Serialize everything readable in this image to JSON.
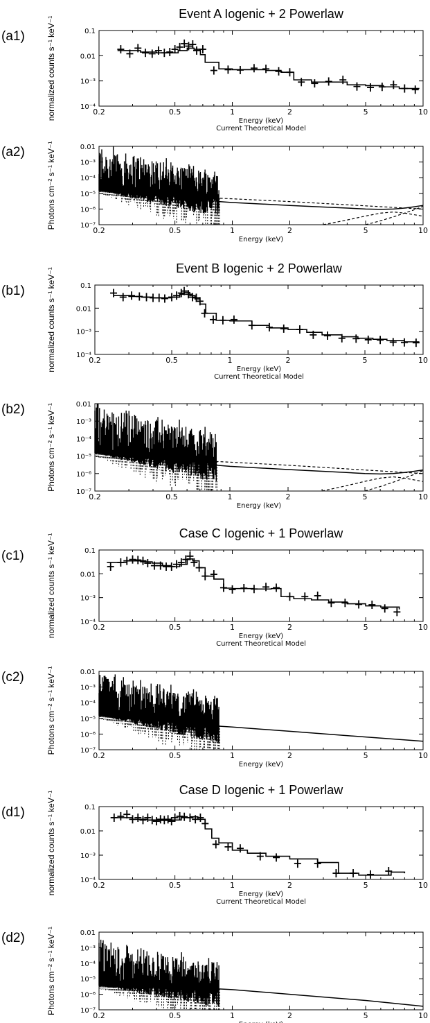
{
  "colors": {
    "ink": "#000000",
    "background": "#ffffff"
  },
  "chart_data": [
    {
      "panel_label": "(a1)",
      "type": "line",
      "title": "Event A Iogenic + 2 Powerlaw",
      "xlabel": "Energy (keV)",
      "ylabel": "normalized counts s⁻¹ keV⁻¹",
      "xscale": "log",
      "yscale": "log",
      "xlim": [
        0.2,
        10
      ],
      "ylim": [
        0.0001,
        0.1
      ],
      "xticks": [
        "0.2",
        "0.5",
        "1",
        "2",
        "5",
        "10"
      ],
      "yticks": [
        "10⁻⁴",
        "10⁻³",
        "0.01",
        "0.1"
      ],
      "caption": "Current Theoretical Model",
      "series": [
        {
          "kind": "data",
          "x": [
            0.26,
            0.29,
            0.32,
            0.35,
            0.38,
            0.41,
            0.44,
            0.47,
            0.5,
            0.53,
            0.56,
            0.59,
            0.62,
            0.65,
            0.7,
            0.8,
            0.95,
            1.1,
            1.3,
            1.5,
            1.75,
            2.0,
            2.3,
            2.7,
            3.2,
            3.8,
            4.5,
            5.3,
            6.1,
            7.0,
            8.0,
            9.1
          ],
          "y": [
            0.018,
            0.012,
            0.02,
            0.013,
            0.012,
            0.016,
            0.013,
            0.014,
            0.018,
            0.022,
            0.03,
            0.024,
            0.028,
            0.016,
            0.018,
            0.0026,
            0.0028,
            0.0027,
            0.0032,
            0.003,
            0.0024,
            0.0022,
            0.0009,
            0.0008,
            0.00095,
            0.0011,
            0.0006,
            0.00055,
            0.00058,
            0.0007,
            0.0005,
            0.00045
          ]
        },
        {
          "kind": "model",
          "x": [
            0.25,
            0.33,
            0.4,
            0.47,
            0.52,
            0.58,
            0.63,
            0.68,
            0.72,
            0.85,
            1.0,
            1.2,
            1.5,
            1.8,
            2.1,
            2.6,
            3.2,
            4.0,
            5.0,
            6.2,
            7.5,
            9.5
          ],
          "y": [
            0.016,
            0.014,
            0.013,
            0.013,
            0.016,
            0.02,
            0.018,
            0.011,
            0.0055,
            0.003,
            0.0028,
            0.0028,
            0.0026,
            0.0022,
            0.0011,
            0.0009,
            0.0009,
            0.0007,
            0.00065,
            0.00058,
            0.0005,
            0.00048
          ]
        }
      ]
    },
    {
      "panel_label": "(a2)",
      "type": "line",
      "title": "",
      "xlabel": "Energy (keV)",
      "ylabel": "Photons cm⁻² s⁻¹ keV⁻¹",
      "xscale": "log",
      "yscale": "log",
      "xlim": [
        0.2,
        10
      ],
      "ylim": [
        1e-07,
        0.01
      ],
      "xticks": [
        "0.2",
        "0.5",
        "1",
        "2",
        "5",
        "10"
      ],
      "yticks": [
        "10⁻⁷",
        "10⁻⁶",
        "10⁻⁵",
        "10⁻⁴",
        "10⁻³",
        "0.01"
      ],
      "lines_cutoff": 0.85,
      "series": [
        {
          "kind": "total",
          "x": [
            0.85,
            1,
            2,
            3,
            4,
            5,
            6,
            7,
            8,
            9,
            10
          ],
          "y": [
            3e-06,
            2.6e-06,
            1.7e-06,
            1.35e-06,
            1.15e-06,
            1e-06,
            9.5e-07,
            1e-06,
            1.15e-06,
            1.4e-06,
            1.7e-06
          ]
        },
        {
          "kind": "component",
          "x": [
            0.2,
            0.3,
            0.5,
            1,
            2,
            5,
            10
          ],
          "y": [
            1.5e-05,
            1e-05,
            6.5e-06,
            4.5e-06,
            3e-06,
            1.6e-06,
            1e-06
          ]
        },
        {
          "kind": "component",
          "x": [
            3,
            4,
            5,
            6,
            7,
            8,
            10
          ],
          "y": [
            1e-07,
            2e-07,
            3.6e-07,
            5.5e-07,
            6.5e-07,
            5.5e-07,
            3.5e-07
          ]
        },
        {
          "kind": "component",
          "x": [
            5,
            6,
            7,
            8,
            9,
            10
          ],
          "y": [
            1e-07,
            1.8e-07,
            3.2e-07,
            5.5e-07,
            9e-07,
            1.5e-06
          ]
        }
      ]
    },
    {
      "panel_label": "(b1)",
      "type": "line",
      "title": "Event B Iogenic + 2 Powerlaw",
      "xlabel": "Energy (keV)",
      "ylabel": "normalized counts s⁻¹ keV⁻¹",
      "xscale": "log",
      "yscale": "log",
      "xlim": [
        0.2,
        10
      ],
      "ylim": [
        0.0001,
        0.1
      ],
      "xticks": [
        "0.2",
        "0.5",
        "1",
        "2",
        "5",
        "10"
      ],
      "yticks": [
        "10⁻⁴",
        "10⁻³",
        "0.01",
        "0.1"
      ],
      "caption": "Current Theoretical Model",
      "series": [
        {
          "kind": "data",
          "x": [
            0.25,
            0.28,
            0.31,
            0.34,
            0.37,
            0.4,
            0.43,
            0.46,
            0.5,
            0.53,
            0.56,
            0.58,
            0.61,
            0.64,
            0.67,
            0.7,
            0.74,
            0.82,
            0.92,
            1.05,
            1.3,
            1.6,
            1.9,
            2.3,
            2.7,
            3.2,
            3.8,
            4.5,
            5.2,
            6.0,
            7.0,
            8.0,
            9.2
          ],
          "y": [
            0.045,
            0.03,
            0.035,
            0.032,
            0.03,
            0.028,
            0.028,
            0.026,
            0.03,
            0.035,
            0.045,
            0.055,
            0.04,
            0.03,
            0.028,
            0.02,
            0.006,
            0.0032,
            0.003,
            0.0032,
            0.0018,
            0.0015,
            0.0013,
            0.0012,
            0.0007,
            0.00065,
            0.0005,
            0.00048,
            0.00043,
            0.00042,
            0.00034,
            0.00033,
            0.00032
          ]
        },
        {
          "kind": "model",
          "x": [
            0.25,
            0.3,
            0.35,
            0.4,
            0.45,
            0.5,
            0.55,
            0.58,
            0.62,
            0.66,
            0.7,
            0.75,
            0.85,
            1.0,
            1.3,
            1.6,
            2.0,
            2.5,
            3.0,
            3.8,
            4.6,
            5.5,
            6.5,
            8.0,
            9.5
          ],
          "y": [
            0.035,
            0.032,
            0.03,
            0.028,
            0.028,
            0.03,
            0.04,
            0.048,
            0.035,
            0.025,
            0.015,
            0.006,
            0.003,
            0.0028,
            0.0018,
            0.0014,
            0.0012,
            0.0009,
            0.0007,
            0.00058,
            0.0005,
            0.00045,
            0.0004,
            0.00035,
            0.00032
          ]
        }
      ]
    },
    {
      "panel_label": "(b2)",
      "type": "line",
      "title": "",
      "xlabel": "Energy (keV)",
      "ylabel": "Photons cm⁻² s⁻¹ keV⁻¹",
      "xscale": "log",
      "yscale": "log",
      "xlim": [
        0.2,
        10
      ],
      "ylim": [
        1e-07,
        0.01
      ],
      "xticks": [
        "0.2",
        "0.5",
        "1",
        "2",
        "5",
        "10"
      ],
      "yticks": [
        "10⁻⁷",
        "10⁻⁶",
        "10⁻⁵",
        "10⁻⁴",
        "10⁻³",
        "0.01"
      ],
      "lines_cutoff": 0.85,
      "series": [
        {
          "kind": "total",
          "x": [
            0.85,
            1,
            2,
            3,
            4,
            5,
            6,
            7,
            8,
            9,
            10
          ],
          "y": [
            3e-06,
            2.6e-06,
            1.7e-06,
            1.35e-06,
            1.15e-06,
            1e-06,
            9.5e-07,
            1e-06,
            1.15e-06,
            1.35e-06,
            1.6e-06
          ]
        },
        {
          "kind": "component",
          "x": [
            0.2,
            0.3,
            0.5,
            1,
            2,
            5,
            10
          ],
          "y": [
            1.5e-05,
            1e-05,
            6.5e-06,
            4.5e-06,
            3e-06,
            1.6e-06,
            1e-06
          ]
        },
        {
          "kind": "component",
          "x": [
            3,
            4,
            5,
            6,
            7,
            8,
            10
          ],
          "y": [
            1e-07,
            2e-07,
            3.6e-07,
            5.5e-07,
            6.5e-07,
            5.5e-07,
            3.5e-07
          ]
        },
        {
          "kind": "component",
          "x": [
            5,
            6,
            7,
            8,
            9,
            10
          ],
          "y": [
            1e-07,
            1.8e-07,
            3.2e-07,
            5.5e-07,
            9e-07,
            1.5e-06
          ]
        }
      ]
    },
    {
      "panel_label": "(c1)",
      "type": "line",
      "title": "Case C Iogenic + 1 Powerlaw",
      "xlabel": "Energy (keV)",
      "ylabel": "normalized counts s⁻¹ keV⁻¹",
      "xscale": "log",
      "yscale": "log",
      "xlim": [
        0.2,
        10
      ],
      "ylim": [
        0.0001,
        0.1
      ],
      "xticks": [
        "0.2",
        "0.5",
        "1",
        "2",
        "5",
        "10"
      ],
      "yticks": [
        "10⁻⁴",
        "10⁻³",
        "0.01",
        "0.1"
      ],
      "caption": "Current Theoretical Model",
      "series": [
        {
          "kind": "data",
          "x": [
            0.23,
            0.26,
            0.28,
            0.3,
            0.32,
            0.34,
            0.36,
            0.39,
            0.42,
            0.45,
            0.48,
            0.51,
            0.54,
            0.57,
            0.6,
            0.63,
            0.67,
            0.72,
            0.8,
            0.9,
            1.0,
            1.15,
            1.3,
            1.5,
            1.7,
            2.0,
            2.4,
            2.8,
            3.3,
            3.9,
            4.6,
            5.4,
            6.3,
            7.3
          ],
          "y": [
            0.02,
            0.03,
            0.035,
            0.04,
            0.038,
            0.035,
            0.028,
            0.022,
            0.022,
            0.02,
            0.02,
            0.025,
            0.03,
            0.04,
            0.055,
            0.03,
            0.018,
            0.008,
            0.0095,
            0.0026,
            0.0022,
            0.0025,
            0.0023,
            0.0028,
            0.0026,
            0.0011,
            0.0011,
            0.0012,
            0.0006,
            0.0006,
            0.00052,
            0.0005,
            0.00035,
            0.00025
          ]
        },
        {
          "kind": "model",
          "x": [
            0.22,
            0.28,
            0.33,
            0.38,
            0.43,
            0.48,
            0.53,
            0.58,
            0.62,
            0.67,
            0.72,
            0.8,
            0.9,
            1.0,
            1.3,
            1.6,
            1.8,
            2.1,
            2.6,
            3.2,
            4.0,
            5.0,
            6.0,
            7.5
          ],
          "y": [
            0.03,
            0.035,
            0.032,
            0.028,
            0.022,
            0.02,
            0.025,
            0.042,
            0.035,
            0.018,
            0.008,
            0.006,
            0.0025,
            0.0024,
            0.0023,
            0.0024,
            0.0011,
            0.0009,
            0.0008,
            0.00065,
            0.00055,
            0.00045,
            0.0004,
            0.00032
          ]
        }
      ]
    },
    {
      "panel_label": "(c2)",
      "type": "line",
      "title": "",
      "xlabel": "Energy (keV)",
      "ylabel": "Photons cm⁻² s⁻¹ keV⁻¹",
      "xscale": "log",
      "yscale": "log",
      "xlim": [
        0.2,
        10
      ],
      "ylim": [
        1e-07,
        0.01
      ],
      "xticks": [
        "0.2",
        "0.5",
        "1",
        "2",
        "5",
        "10"
      ],
      "yticks": [
        "10⁻⁷",
        "10⁻⁶",
        "10⁻⁵",
        "10⁻⁴",
        "10⁻³",
        "0.01"
      ],
      "lines_cutoff": 0.85,
      "series": [
        {
          "kind": "total",
          "x": [
            0.85,
            1,
            2,
            5,
            10
          ],
          "y": [
            3.2e-06,
            2.8e-06,
            1.5e-06,
            6.5e-07,
            3.5e-07
          ]
        },
        {
          "kind": "component",
          "x": [
            0.2,
            0.3,
            0.5,
            0.85
          ],
          "y": [
            1.5e-05,
            1e-05,
            6e-06,
            3.5e-06
          ]
        }
      ]
    },
    {
      "panel_label": "(d1)",
      "type": "line",
      "title": "Case D Iogenic + 1 Powerlaw",
      "xlabel": "Energy (keV)",
      "ylabel": "normalized counts s⁻¹ keV⁻¹",
      "xscale": "log",
      "yscale": "log",
      "xlim": [
        0.2,
        10
      ],
      "ylim": [
        0.0001,
        0.1
      ],
      "xticks": [
        "0.2",
        "0.5",
        "1",
        "2",
        "5",
        "10"
      ],
      "yticks": [
        "10⁻⁴",
        "10⁻³",
        "0.01",
        "0.1"
      ],
      "caption": "Current Theoretical Model",
      "series": [
        {
          "kind": "data",
          "x": [
            0.24,
            0.26,
            0.28,
            0.3,
            0.32,
            0.34,
            0.36,
            0.38,
            0.4,
            0.42,
            0.44,
            0.46,
            0.48,
            0.5,
            0.53,
            0.56,
            0.6,
            0.64,
            0.68,
            0.72,
            0.82,
            0.95,
            1.1,
            1.4,
            1.7,
            2.2,
            2.8,
            3.5,
            4.3,
            5.3,
            6.6
          ],
          "y": [
            0.035,
            0.04,
            0.048,
            0.03,
            0.035,
            0.028,
            0.035,
            0.028,
            0.025,
            0.03,
            0.028,
            0.03,
            0.025,
            0.035,
            0.04,
            0.038,
            0.035,
            0.03,
            0.035,
            0.02,
            0.0028,
            0.0022,
            0.0019,
            0.0009,
            0.0008,
            0.00045,
            0.00045,
            0.00018,
            0.00018,
            0.00016,
            0.00022
          ]
        },
        {
          "kind": "model",
          "x": [
            0.23,
            0.3,
            0.36,
            0.42,
            0.48,
            0.54,
            0.6,
            0.66,
            0.72,
            0.78,
            0.85,
            1.0,
            1.2,
            1.5,
            2.0,
            2.8,
            3.6,
            4.6,
            5.5,
            6.8,
            8.0
          ],
          "y": [
            0.035,
            0.03,
            0.028,
            0.027,
            0.028,
            0.035,
            0.038,
            0.03,
            0.012,
            0.005,
            0.0032,
            0.0016,
            0.0012,
            0.0009,
            0.0007,
            0.0005,
            0.00018,
            0.00015,
            0.00015,
            0.0002,
            0.00018
          ]
        }
      ]
    },
    {
      "panel_label": "(d2)",
      "type": "line",
      "title": "",
      "xlabel": "Energy (keV)",
      "ylabel": "Photons cm⁻² s⁻¹ keV⁻¹",
      "xscale": "log",
      "yscale": "log",
      "xlim": [
        0.2,
        10
      ],
      "ylim": [
        1e-07,
        0.01
      ],
      "xticks": [
        "0.2",
        "0.5",
        "1",
        "2",
        "5",
        "10"
      ],
      "yticks": [
        "10⁻⁷",
        "10⁻⁶",
        "10⁻⁵",
        "10⁻⁴",
        "10⁻³",
        "0.01"
      ],
      "lines_cutoff": 0.85,
      "series": [
        {
          "kind": "total",
          "x": [
            0.85,
            1,
            2,
            5,
            10
          ],
          "y": [
            2.2e-06,
            2e-06,
            1e-06,
            4e-07,
            1.7e-07
          ]
        },
        {
          "kind": "component",
          "x": [
            0.2,
            0.3,
            0.5,
            0.85
          ],
          "y": [
            3.5e-06,
            3e-06,
            2.6e-06,
            2.2e-06
          ]
        }
      ]
    }
  ]
}
